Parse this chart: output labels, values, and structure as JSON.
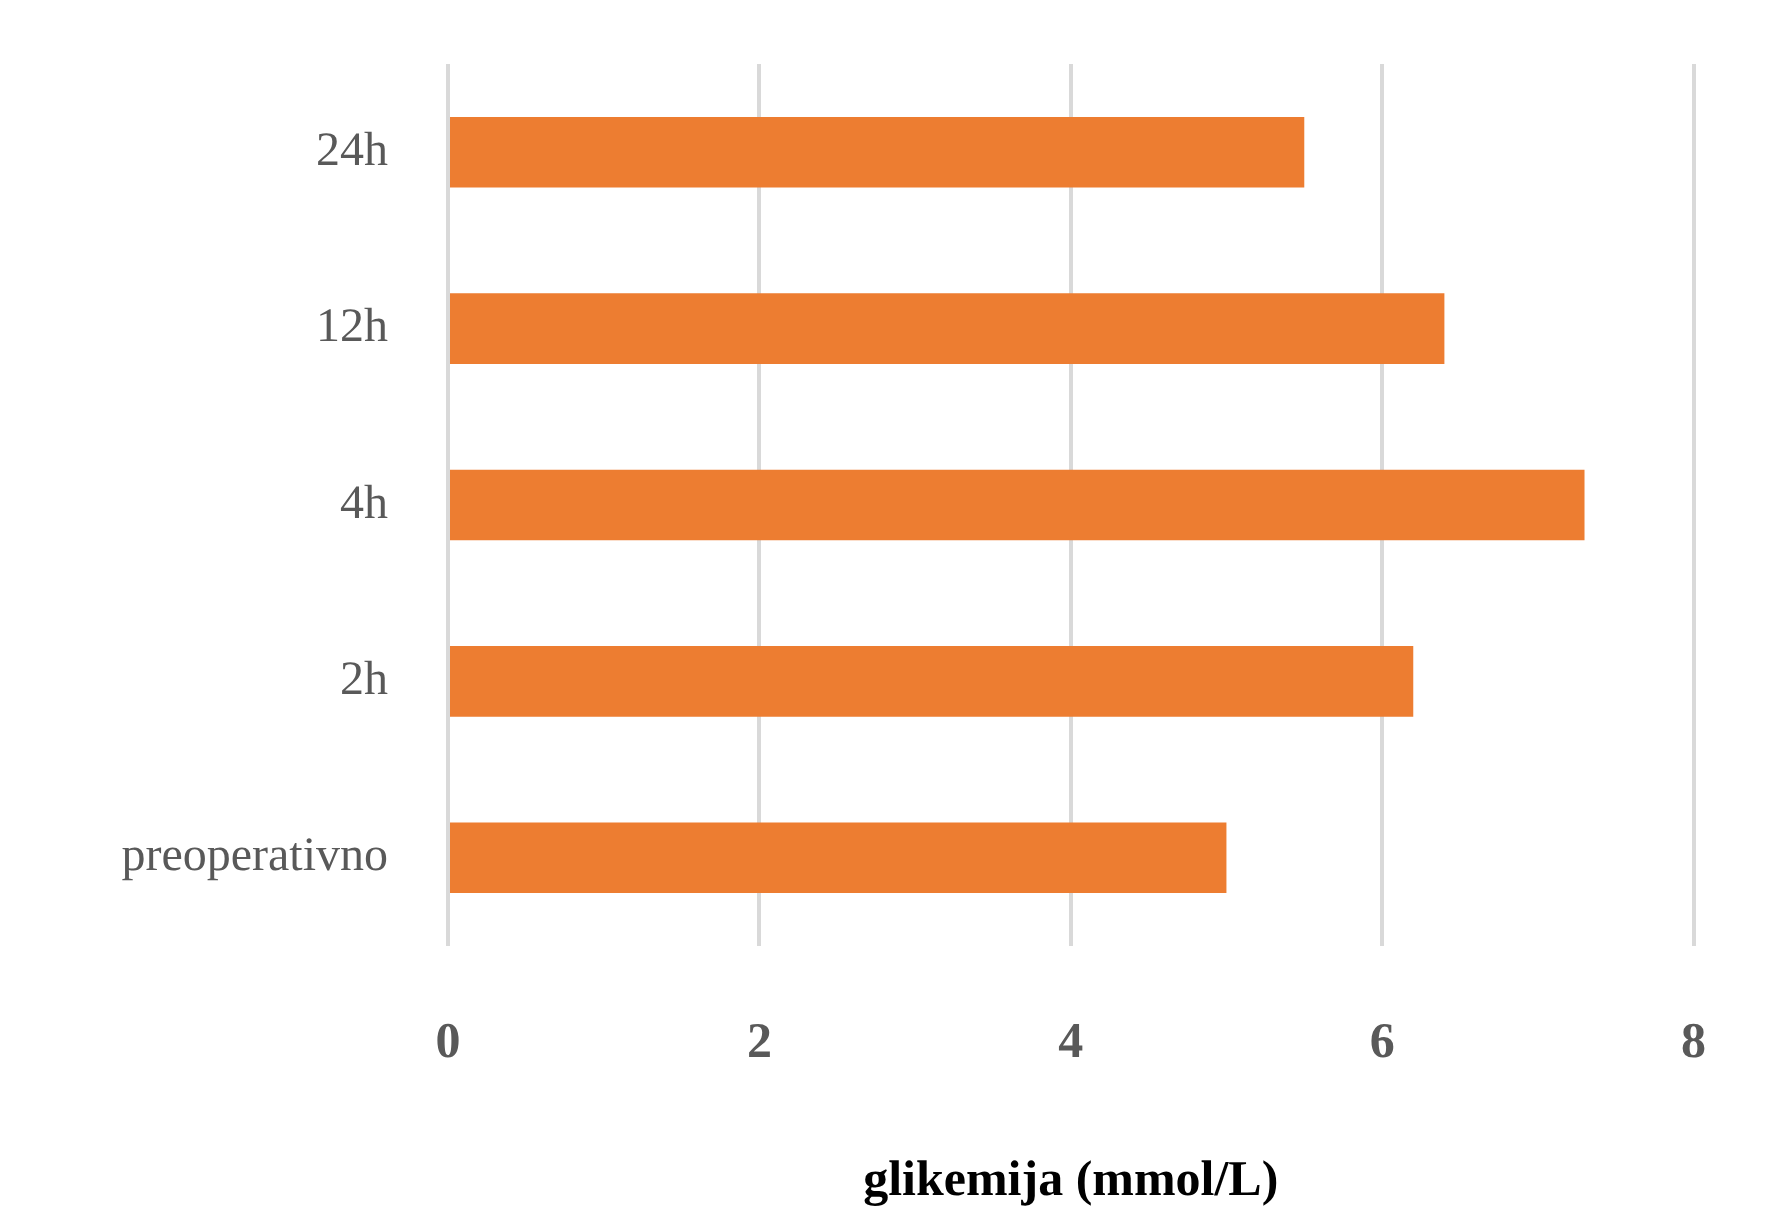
{
  "chart_data": {
    "type": "bar",
    "orientation": "horizontal",
    "categories": [
      "24h",
      "12h",
      "4h",
      "2h",
      "preoperativno"
    ],
    "values": [
      5.5,
      6.4,
      7.3,
      6.2,
      5.0
    ],
    "color": "#ed7d31",
    "xlabel": "glikemija (mmol/L)",
    "xlim": [
      0,
      8
    ],
    "xticks": [
      0,
      2,
      4,
      6,
      8
    ],
    "grid": "x",
    "legend": false
  }
}
